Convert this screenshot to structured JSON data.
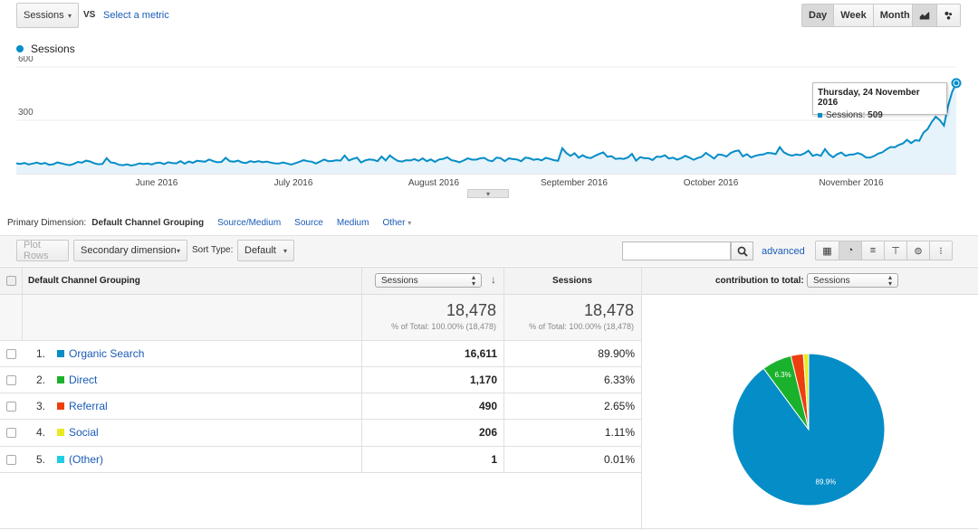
{
  "toolbar": {
    "metric1": "Sessions",
    "vs": "VS",
    "select_metric": "Select a metric",
    "periods": [
      "Day",
      "Week",
      "Month"
    ],
    "active_period": "Day"
  },
  "chart_data": {
    "type": "area",
    "legend": "Sessions",
    "color": "#058dc7",
    "y_ticks": [
      "600",
      "300"
    ],
    "ylim": [
      0,
      600
    ],
    "x_labels": [
      "June 2016",
      "July 2016",
      "August 2016",
      "September 2016",
      "October 2016",
      "November 2016"
    ],
    "values": [
      58,
      55,
      60,
      52,
      57,
      62,
      55,
      60,
      50,
      53,
      63,
      58,
      52,
      48,
      55,
      66,
      62,
      73,
      68,
      58,
      53,
      55,
      87,
      63,
      60,
      50,
      48,
      52,
      46,
      50,
      58,
      54,
      57,
      52,
      60,
      62,
      54,
      64,
      60,
      58,
      70,
      56,
      68,
      61,
      72,
      70,
      67,
      80,
      70,
      64,
      66,
      89,
      70,
      67,
      73,
      63,
      60,
      70,
      65,
      70,
      64,
      68,
      62,
      58,
      57,
      63,
      57,
      51,
      59,
      67,
      76,
      70,
      67,
      57,
      68,
      80,
      70,
      71,
      76,
      73,
      102,
      74,
      83,
      90,
      63,
      75,
      80,
      78,
      70,
      96,
      74,
      102,
      85,
      71,
      68,
      76,
      74,
      82,
      72,
      86,
      70,
      80,
      66,
      80,
      83,
      92,
      76,
      71,
      64,
      74,
      86,
      79,
      79,
      86,
      89,
      75,
      70,
      90,
      87,
      70,
      86,
      82,
      80,
      70,
      90,
      87,
      78,
      82,
      75,
      89,
      83,
      76,
      72,
      143,
      116,
      100,
      115,
      90,
      103,
      91,
      88,
      100,
      111,
      120,
      95,
      98,
      83,
      86,
      83,
      91,
      111,
      73,
      93,
      87,
      87,
      77,
      96,
      94,
      103,
      85,
      90,
      79,
      87,
      100,
      90,
      78,
      88,
      95,
      117,
      101,
      85,
      108,
      106,
      96,
      116,
      126,
      130,
      97,
      110,
      91,
      100,
      105,
      108,
      117,
      115,
      110,
      149,
      120,
      108,
      101,
      108,
      104,
      114,
      129,
      100,
      108,
      100,
      138,
      109,
      92,
      110,
      119,
      100,
      107,
      108,
      116,
      108,
      91,
      90,
      99,
      113,
      120,
      137,
      150,
      148,
      161,
      170,
      190,
      172,
      188,
      185,
      230,
      250,
      290,
      320,
      300,
      270,
      380,
      460,
      509
    ],
    "tooltip": {
      "date": "Thursday, 24 November 2016",
      "label": "Sessions:",
      "value": "509"
    }
  },
  "dimension_bar": {
    "label": "Primary Dimension:",
    "active": "Default Channel Grouping",
    "options": [
      "Source/Medium",
      "Source",
      "Medium"
    ],
    "other": "Other"
  },
  "table_controls": {
    "plot_rows": "Plot Rows",
    "secondary": "Secondary dimension",
    "sort_type_label": "Sort Type:",
    "sort_value": "Default",
    "search_value": "",
    "advanced": "advanced"
  },
  "table": {
    "col_dimension": "Default Channel Grouping",
    "col_metric_select": "Sessions",
    "col_sessions": "Sessions",
    "col_contribution_label": "contribution to total:",
    "col_contribution_select": "Sessions",
    "totals": {
      "value1": "18,478",
      "sub1": "% of Total: 100.00% (18,478)",
      "value2": "18,478",
      "sub2": "% of Total: 100.00% (18,478)"
    },
    "rows": [
      {
        "index": "1.",
        "name": "Organic Search",
        "color": "#058dc7",
        "sessions": "16,611",
        "percent": "89.90%"
      },
      {
        "index": "2.",
        "name": "Direct",
        "color": "#1ab22c",
        "sessions": "1,170",
        "percent": "6.33%"
      },
      {
        "index": "3.",
        "name": "Referral",
        "color": "#ed3e0e",
        "sessions": "490",
        "percent": "2.65%"
      },
      {
        "index": "4.",
        "name": "Social",
        "color": "#e9e920",
        "sessions": "206",
        "percent": "1.11%"
      },
      {
        "index": "5.",
        "name": "(Other)",
        "color": "#24cbe5",
        "sessions": "1",
        "percent": "0.01%"
      }
    ]
  },
  "pie": {
    "slices": [
      {
        "name": "Organic Search",
        "value": 89.9,
        "color": "#058dc7",
        "label": "89.9%"
      },
      {
        "name": "Direct",
        "value": 6.33,
        "color": "#1ab22c",
        "label": "6.3%"
      },
      {
        "name": "Referral",
        "value": 2.65,
        "color": "#ed3e0e",
        "label": ""
      },
      {
        "name": "Social",
        "value": 1.11,
        "color": "#e9e920",
        "label": ""
      },
      {
        "name": "(Other)",
        "value": 0.01,
        "color": "#24cbe5",
        "label": ""
      }
    ]
  }
}
